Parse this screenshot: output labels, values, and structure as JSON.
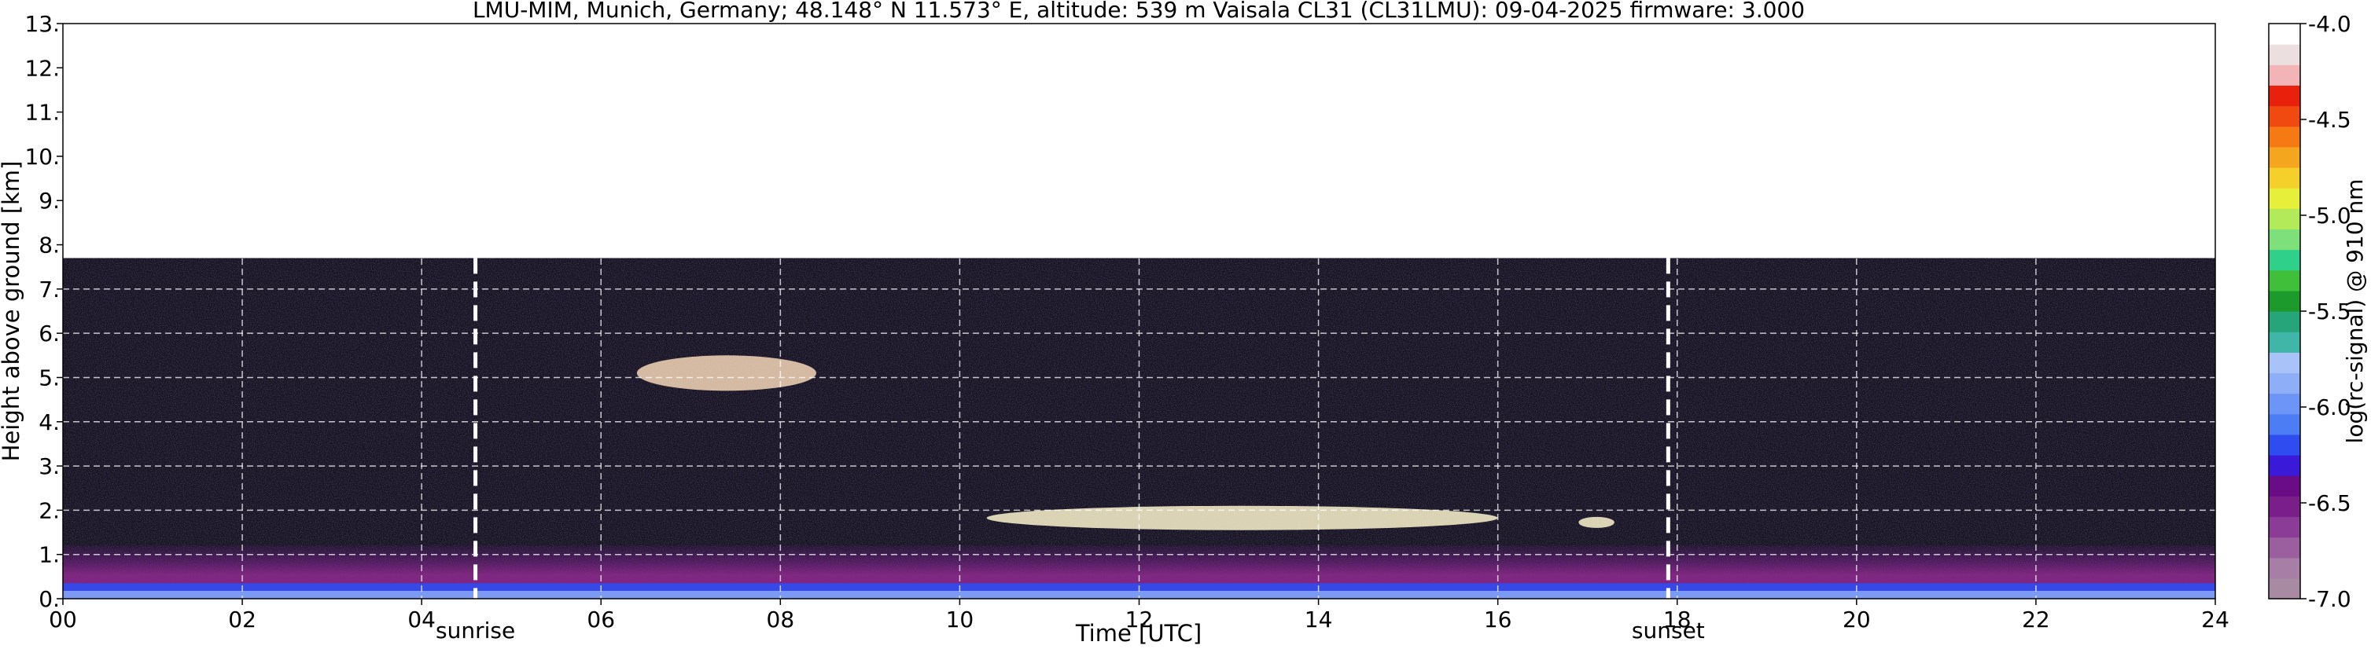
{
  "chart_data": {
    "type": "heatmap",
    "title": "LMU-MIM, Munich, Germany; 48.148° N 11.573° E, altitude: 539 m    Vaisala CL31 (CL31LMU): 09-04-2025    firmware: 3.000",
    "xlabel": "Time [UTC]",
    "ylabel": "Height above ground [km]",
    "xlim": [
      0,
      24
    ],
    "ylim": [
      0,
      13
    ],
    "x_ticks": [
      0,
      2,
      4,
      6,
      8,
      10,
      12,
      14,
      16,
      18,
      20,
      22,
      24
    ],
    "x_tick_labels": [
      "00",
      "02",
      "04",
      "06",
      "08",
      "10",
      "12",
      "14",
      "16",
      "18",
      "20",
      "22",
      "24"
    ],
    "y_ticks": [
      0,
      1,
      2,
      3,
      4,
      5,
      6,
      7,
      8,
      9,
      10,
      11,
      12,
      13
    ],
    "y_tick_labels": [
      "0.",
      "1.",
      "2.",
      "3.",
      "4.",
      "5.",
      "6.",
      "7.",
      "8.",
      "9.",
      "10.",
      "11.",
      "12.",
      "13."
    ],
    "grid": true,
    "data_top_km": 7.7,
    "markers": [
      {
        "label": "sunrise",
        "x": 4.6
      },
      {
        "label": "sunset",
        "x": 17.9
      }
    ],
    "colorbar": {
      "label": "log(rc-signal) @ 910 nm",
      "min": -7.0,
      "max": -4.0,
      "ticks": [
        -7.0,
        -6.5,
        -6.0,
        -5.5,
        -5.0,
        -4.5,
        -4.0
      ],
      "tick_labels": [
        "-7.0",
        "-6.5",
        "-6.0",
        "-5.5",
        "-5.0",
        "-4.5",
        "-4.0"
      ],
      "colors": [
        "#a88aa3",
        "#a67ea6",
        "#9b5fa0",
        "#8a3c96",
        "#7a1e8a",
        "#6a0c85",
        "#3a1ad8",
        "#2f4cf0",
        "#4d7df5",
        "#6d95f7",
        "#8eaef8",
        "#a9c3f9",
        "#3fb6a8",
        "#27a57a",
        "#1d9a2c",
        "#3fbf3a",
        "#2fd08a",
        "#7ee07a",
        "#b3ea5a",
        "#e6f03a",
        "#f5cf2a",
        "#f5a61f",
        "#f57a14",
        "#f04a10",
        "#e8200c",
        "#f2b4b6",
        "#ecdfe0",
        "#ffffff"
      ]
    },
    "features": [
      {
        "name": "aerosol layer",
        "x_start": 0,
        "x_end": 24,
        "y_bottom": 0.0,
        "y_top": 1.2,
        "color": "#8a3c96"
      },
      {
        "name": "surface layer",
        "x_start": 0,
        "x_end": 24,
        "y_bottom": 0.0,
        "y_top": 0.35,
        "color": "#2f4cf0"
      },
      {
        "name": "cloud",
        "x_start": 6.4,
        "x_end": 8.4,
        "y_bottom": 4.7,
        "y_top": 5.5,
        "color": "#f6d6b8"
      },
      {
        "name": "cloud",
        "x_start": 10.3,
        "x_end": 16.0,
        "y_bottom": 1.55,
        "y_top": 2.1,
        "color": "#fbf3cc"
      },
      {
        "name": "cloud",
        "x_start": 16.9,
        "x_end": 17.3,
        "y_bottom": 1.6,
        "y_top": 1.85,
        "color": "#fbf3cc"
      }
    ]
  }
}
